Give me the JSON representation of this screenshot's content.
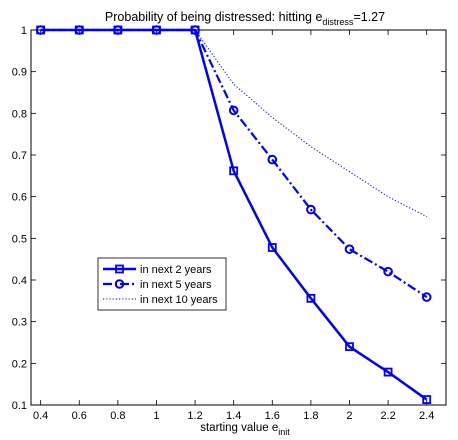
{
  "chart_data": {
    "type": "line",
    "title": {
      "main": "Probability of being distressed: hitting e",
      "sub": "distress",
      "suffix": "=1.27"
    },
    "xlabel": {
      "main": "starting value e",
      "sub": "init"
    },
    "ylabel": "",
    "xlim": [
      0.35,
      2.5
    ],
    "ylim": [
      0.1,
      1.0
    ],
    "xticks": [
      0.4,
      0.6,
      0.8,
      1,
      1.2,
      1.4,
      1.6,
      1.8,
      2,
      2.2,
      2.4
    ],
    "yticks": [
      0.1,
      0.2,
      0.3,
      0.4,
      0.5,
      0.6,
      0.7,
      0.8,
      0.9,
      1
    ],
    "grid": false,
    "legend_position": "center-left",
    "series": [
      {
        "name": "in next 2 years",
        "line_style": "solid",
        "marker": "square",
        "color": "#0000ff",
        "x": [
          0.4,
          0.6,
          0.8,
          1.0,
          1.2,
          1.4,
          1.6,
          1.8,
          2.0,
          2.2,
          2.4
        ],
        "y": [
          1.0,
          1.0,
          1.0,
          1.0,
          1.0,
          0.662,
          0.478,
          0.356,
          0.24,
          0.179,
          0.113
        ]
      },
      {
        "name": "in next 5 years",
        "line_style": "dashdot",
        "marker": "circle",
        "color": "#0000ff",
        "x": [
          0.4,
          0.6,
          0.8,
          1.0,
          1.2,
          1.4,
          1.6,
          1.8,
          2.0,
          2.2,
          2.4
        ],
        "y": [
          1.0,
          1.0,
          1.0,
          1.0,
          1.0,
          0.807,
          0.689,
          0.569,
          0.474,
          0.42,
          0.359
        ]
      },
      {
        "name": "in next 10 years",
        "line_style": "dotted",
        "marker": "none",
        "color": "#0000ff",
        "x": [
          1.2,
          1.4,
          1.6,
          1.8,
          2.0,
          2.2,
          2.4
        ],
        "y": [
          1.0,
          0.87,
          0.79,
          0.72,
          0.66,
          0.6,
          0.552
        ]
      }
    ]
  }
}
